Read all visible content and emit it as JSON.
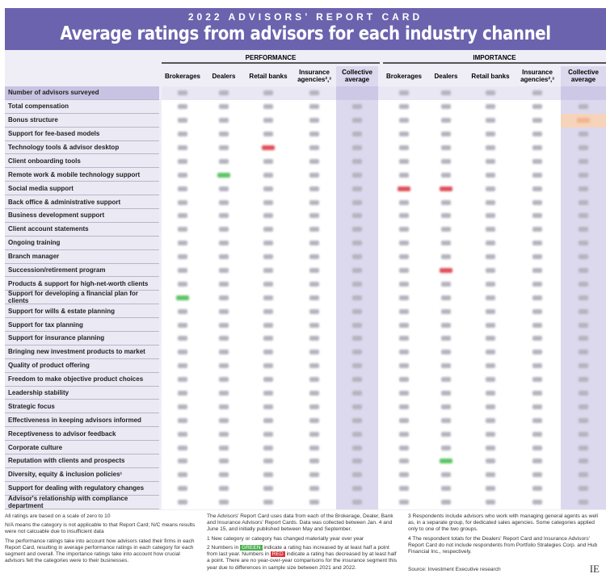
{
  "header": {
    "kicker": "2022 ADVISORS’ REPORT CARD",
    "title": "Average ratings from advisors for each industry channel"
  },
  "groups": {
    "performance": "PERFORMANCE",
    "importance": "IMPORTANCE"
  },
  "columns": [
    "Brokerages",
    "Dealers",
    "Retail banks",
    "Insurance agencies²,³",
    "Collective average"
  ],
  "rows": [
    "Number of advisors surveyed",
    "Total compensation",
    "Bonus structure",
    "Support for fee-based models",
    "Technology tools & advisor desktop",
    "Client onboarding tools",
    "Remote work & mobile technology support",
    "Social media support",
    "Back office & administrative support",
    "Business development support",
    "Client account statements",
    "Ongoing training",
    "Branch manager",
    "Succession/retirement program",
    "Products & support for high-net-worth clients",
    "Support for developing a financial plan for clients",
    "Support for wills & estate planning",
    "Support for tax planning",
    "Support for insurance planning",
    "Bringing new investment products to market",
    "Quality of product offering",
    "Freedom to make objective product choices",
    "Leadership stability",
    "Strategic focus",
    "Effectiveness in keeping advisors informed",
    "Receptiveness to advisor feedback",
    "Corporate culture",
    "Reputation with clients and prospects",
    "Diversity, equity & inclusion policies¹",
    "Support for dealing with regulatory changes",
    "Advisor's relationship with compliance department"
  ],
  "highlights": [
    {
      "row": 2,
      "col": 9,
      "color": "orange"
    },
    {
      "row": 4,
      "col": 2,
      "color": "red"
    },
    {
      "row": 6,
      "col": 1,
      "color": "green"
    },
    {
      "row": 7,
      "col": 5,
      "color": "red"
    },
    {
      "row": 7,
      "col": 6,
      "color": "red"
    },
    {
      "row": 13,
      "col": 6,
      "color": "red"
    },
    {
      "row": 15,
      "col": 0,
      "color": "green"
    },
    {
      "row": 27,
      "col": 6,
      "color": "green"
    }
  ],
  "notes": {
    "scale": "All ratings are based on a scale of zero to 10",
    "na": "N/A means the category is not applicable to that Report Card; N/C means results were not calcuable due to insufficient data",
    "method": "The performance ratings take into account how advisors rated their firms in each Report Card, resulting in average performance ratings in each category for each segment and overall. The importance ratings take into account how crucial advisors felt the categories were to their businesses.",
    "data": "The Advisors' Report Card uses data from each of the Brokerage, Dealer, Bank and Insurance Advisors' Report Cards. Data was collected between Jan. 4 and June 15, and initially published between May and September.",
    "n1": "1  New category or category has changed materially year over year",
    "n2a": "2  Numbers in",
    "green": "GREEN",
    "n2b": "indicate a rating has increased by at least half a point from last year. Numbers in",
    "red": "RED",
    "n2c": "indicate a rating has decreased by at least half a point. There are no year-over-year comparisons for the insurance segment this year due to differences in sample size between 2021 and 2022.",
    "n3": "3  Respondents include advisors who work with managing general agents as well as, in a separate group, for dedicated sales agencies. Some categories applied only to one of the two groups.",
    "n4": "4  The respondent totals for the Dealers' Report Card and Insurance Advisors' Report Card do not include respondents from Portfolio Strategies Corp. and Hub Financial Inc., respectively.",
    "source": "Source: Investment Executive research",
    "logo": "IE"
  }
}
